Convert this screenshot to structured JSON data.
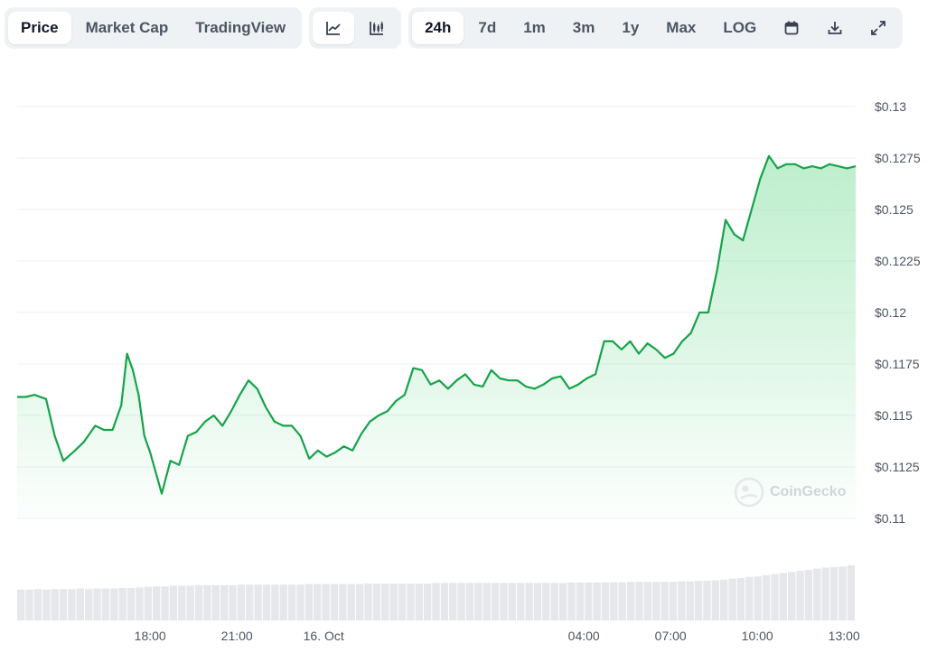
{
  "tabs": {
    "price_label": "Price",
    "market_cap_label": "Market Cap",
    "tradingview_label": "TradingView"
  },
  "chart_types": {
    "line_icon": "line-chart-icon",
    "candle_icon": "candlestick-icon"
  },
  "ranges": {
    "r24h": "24h",
    "r7d": "7d",
    "r1m": "1m",
    "r3m": "3m",
    "r1y": "1y",
    "max": "Max",
    "log": "LOG",
    "calendar_icon": "calendar-icon",
    "download_icon": "download-icon",
    "fullscreen_icon": "fullscreen-icon"
  },
  "watermark": "CoinGecko",
  "colors": {
    "line": "#16a34a",
    "fill_top": "#86e0a3",
    "grid": "#eceff3",
    "volume": "#e5e7eb"
  },
  "chart_data": {
    "type": "area",
    "title": "",
    "xlabel": "",
    "ylabel": "",
    "ylim": [
      0.11,
      0.13
    ],
    "y_ticks": [
      "$0.13",
      "$0.1275",
      "$0.125",
      "$0.1225",
      "$0.12",
      "$0.1175",
      "$0.115",
      "$0.1125",
      "$0.11"
    ],
    "x_ticks": [
      "18:00",
      "21:00",
      "16. Oct",
      "04:00",
      "07:00",
      "10:00",
      "13:00"
    ],
    "x_ticks_hours": [
      4.6,
      7.6,
      10.6,
      19.6,
      22.6,
      25.6,
      28.6
    ],
    "x_range_hours": [
      0,
      29.0
    ],
    "series": [
      {
        "x": [
          0,
          0.3,
          0.6,
          1.0,
          1.3,
          1.6,
          2.0,
          2.3,
          2.7,
          3.0,
          3.3,
          3.6,
          3.8,
          4.0,
          4.2,
          4.4,
          4.6,
          4.8,
          5.0,
          5.3,
          5.6,
          5.9,
          6.2,
          6.5,
          6.8,
          7.1,
          7.4,
          7.7,
          8.0,
          8.3,
          8.6,
          8.9,
          9.2,
          9.5,
          9.8,
          10.1,
          10.4,
          10.7,
          11.0,
          11.3,
          11.6,
          11.9,
          12.2,
          12.5,
          12.8,
          13.1,
          13.4,
          13.7,
          14.0,
          14.3,
          14.6,
          14.9,
          15.2,
          15.5,
          15.8,
          16.1,
          16.4,
          16.7,
          17.0,
          17.3,
          17.6,
          17.9,
          18.2,
          18.5,
          18.8,
          19.1,
          19.4,
          19.7,
          20.0,
          20.3,
          20.6,
          20.9,
          21.2,
          21.5,
          21.8,
          22.1,
          22.4,
          22.7,
          23.0,
          23.3,
          23.6,
          23.9,
          24.2,
          24.5,
          24.8,
          25.1,
          25.4,
          25.7,
          26.0,
          26.3,
          26.6,
          26.9,
          27.2,
          27.5,
          27.8,
          28.1,
          28.4,
          28.7,
          29.0
        ],
        "values": [
          0.1159,
          0.1159,
          0.116,
          0.1158,
          0.114,
          0.1128,
          0.1133,
          0.1137,
          0.1145,
          0.1143,
          0.1143,
          0.1155,
          0.118,
          0.1172,
          0.116,
          0.114,
          0.1132,
          0.1122,
          0.1112,
          0.1128,
          0.1126,
          0.114,
          0.1142,
          0.1147,
          0.115,
          0.1145,
          0.1152,
          0.116,
          0.1167,
          0.1163,
          0.1154,
          0.1147,
          0.1145,
          0.1145,
          0.114,
          0.1129,
          0.1133,
          0.113,
          0.1132,
          0.1135,
          0.1133,
          0.1141,
          0.1147,
          0.115,
          0.1152,
          0.1157,
          0.116,
          0.1173,
          0.1172,
          0.1165,
          0.1167,
          0.1163,
          0.1167,
          0.117,
          0.1165,
          0.1164,
          0.1172,
          0.1168,
          0.1167,
          0.1167,
          0.1164,
          0.1163,
          0.1165,
          0.1168,
          0.1169,
          0.1163,
          0.1165,
          0.1168,
          0.117,
          0.1186,
          0.1186,
          0.1182,
          0.1186,
          0.118,
          0.1185,
          0.1182,
          0.1178,
          0.118,
          0.1186,
          0.119,
          0.12,
          0.12,
          0.122,
          0.1245,
          0.1238,
          0.1235,
          0.125,
          0.1265,
          0.1276,
          0.127,
          0.1272,
          0.1272,
          0.127,
          0.1271,
          0.127,
          0.1272,
          0.1271,
          0.127,
          0.1271
        ]
      }
    ],
    "volume_range": [
      0,
      1
    ],
    "volume": [
      0.56,
      0.56,
      0.57,
      0.56,
      0.57,
      0.57,
      0.57,
      0.58,
      0.57,
      0.58,
      0.58,
      0.58,
      0.59,
      0.59,
      0.6,
      0.61,
      0.62,
      0.62,
      0.63,
      0.63,
      0.63,
      0.64,
      0.64,
      0.64,
      0.64,
      0.64,
      0.65,
      0.65,
      0.65,
      0.65,
      0.65,
      0.65,
      0.65,
      0.65,
      0.66,
      0.66,
      0.66,
      0.66,
      0.66,
      0.66,
      0.66,
      0.67,
      0.67,
      0.67,
      0.67,
      0.67,
      0.67,
      0.67,
      0.67,
      0.68,
      0.68,
      0.68,
      0.68,
      0.68,
      0.68,
      0.68,
      0.68,
      0.68,
      0.68,
      0.68,
      0.68,
      0.68,
      0.68,
      0.68,
      0.68,
      0.69,
      0.69,
      0.69,
      0.69,
      0.69,
      0.69,
      0.69,
      0.7,
      0.7,
      0.7,
      0.7,
      0.7,
      0.7,
      0.71,
      0.71,
      0.72,
      0.72,
      0.73,
      0.74,
      0.76,
      0.77,
      0.79,
      0.8,
      0.82,
      0.84,
      0.86,
      0.88,
      0.9,
      0.92,
      0.94,
      0.96,
      0.97,
      0.98,
      1.0
    ],
    "grid": true
  }
}
